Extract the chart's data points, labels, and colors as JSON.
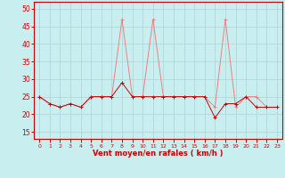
{
  "xlabel": "Vent moyen/en rafales ( km/h )",
  "background_color": "#c8eef0",
  "grid_color": "#aed4d8",
  "line_color_gusts": "#f08080",
  "line_color_avg": "#cc0000",
  "hours": [
    0,
    1,
    2,
    3,
    4,
    5,
    6,
    7,
    8,
    9,
    10,
    11,
    12,
    13,
    14,
    15,
    16,
    17,
    18,
    19,
    20,
    21,
    22,
    23
  ],
  "avg_wind": [
    25,
    23,
    22,
    23,
    22,
    25,
    25,
    25,
    29,
    25,
    25,
    25,
    25,
    25,
    25,
    25,
    25,
    19,
    23,
    23,
    25,
    22,
    22,
    22
  ],
  "gusts": [
    25,
    23,
    22,
    23,
    22,
    25,
    25,
    25,
    47,
    25,
    25,
    47,
    25,
    25,
    25,
    25,
    25,
    22,
    47,
    22,
    25,
    25,
    22,
    22
  ],
  "ylim": [
    13,
    52
  ],
  "yticks": [
    15,
    20,
    25,
    30,
    35,
    40,
    45,
    50
  ],
  "xlim": [
    -0.5,
    23.5
  ]
}
